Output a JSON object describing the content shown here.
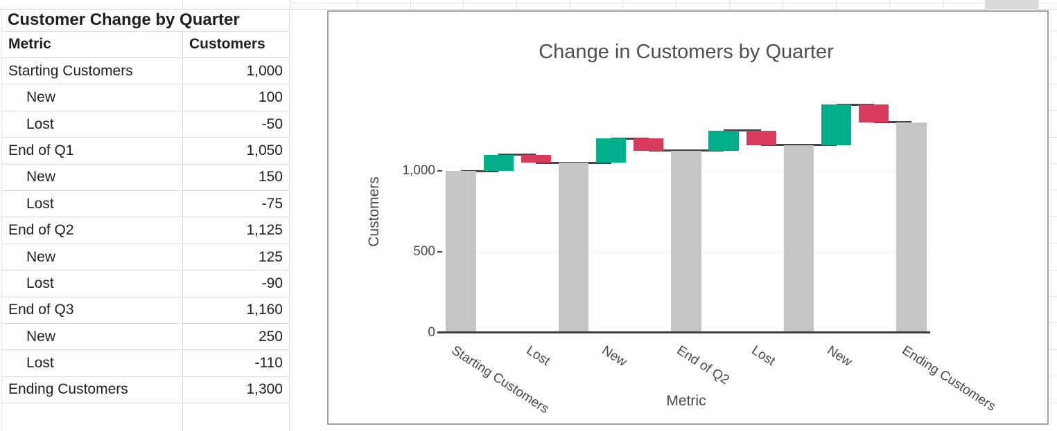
{
  "sheet": {
    "table_title": "Customer Change by Quarter",
    "columns": [
      "Metric",
      "Customers"
    ],
    "rows": [
      {
        "metric": "Starting Customers",
        "value": "1,000",
        "indent": false
      },
      {
        "metric": "New",
        "value": "100",
        "indent": true
      },
      {
        "metric": "Lost",
        "value": "-50",
        "indent": true
      },
      {
        "metric": "End of Q1",
        "value": "1,050",
        "indent": false
      },
      {
        "metric": "New",
        "value": "150",
        "indent": true
      },
      {
        "metric": "Lost",
        "value": "-75",
        "indent": true
      },
      {
        "metric": "End of Q2",
        "value": "1,125",
        "indent": false
      },
      {
        "metric": "New",
        "value": "125",
        "indent": true
      },
      {
        "metric": "Lost",
        "value": "-90",
        "indent": true
      },
      {
        "metric": "End of Q3",
        "value": "1,160",
        "indent": false
      },
      {
        "metric": "New",
        "value": "250",
        "indent": true
      },
      {
        "metric": "Lost",
        "value": "-110",
        "indent": true
      },
      {
        "metric": "Ending Customers",
        "value": "1,300",
        "indent": false
      }
    ]
  },
  "chart_data": {
    "type": "waterfall",
    "title": "Change in Customers by Quarter",
    "xlabel": "Metric",
    "ylabel": "Customers",
    "categories": [
      "Starting Customers",
      "New",
      "Lost",
      "End of Q1",
      "New",
      "Lost",
      "End of Q2",
      "New",
      "Lost",
      "End of Q3",
      "New",
      "Lost",
      "Ending Customers"
    ],
    "measures": [
      "total",
      "relative",
      "relative",
      "total",
      "relative",
      "relative",
      "total",
      "relative",
      "relative",
      "total",
      "relative",
      "relative",
      "total"
    ],
    "values": [
      1000,
      100,
      -50,
      1050,
      150,
      -75,
      1125,
      125,
      -90,
      1160,
      250,
      -110,
      1300
    ],
    "running_totals": [
      1000,
      1100,
      1050,
      1050,
      1200,
      1125,
      1125,
      1250,
      1160,
      1160,
      1410,
      1300,
      1300
    ],
    "x_ticks": [
      {
        "index": 0,
        "label": "Starting Customers"
      },
      {
        "index": 2,
        "label": "Lost"
      },
      {
        "index": 4,
        "label": "New"
      },
      {
        "index": 6,
        "label": "End of Q2"
      },
      {
        "index": 8,
        "label": "Lost"
      },
      {
        "index": 10,
        "label": "New"
      },
      {
        "index": 12,
        "label": "Ending Customers"
      }
    ],
    "y_ticks": [
      {
        "value": 0,
        "label": "0"
      },
      {
        "value": 500,
        "label": "500"
      },
      {
        "value": 1000,
        "label": "1,000"
      }
    ],
    "ylim": [
      0,
      1500
    ],
    "grid": "horizontal",
    "legend": "none",
    "colors": {
      "increase": "#00AE8A",
      "decrease": "#D83C5C",
      "total": "#C5C5C7",
      "connector": "#454545",
      "axis_text": "#46484d",
      "title_text": "#4c4e54"
    }
  }
}
